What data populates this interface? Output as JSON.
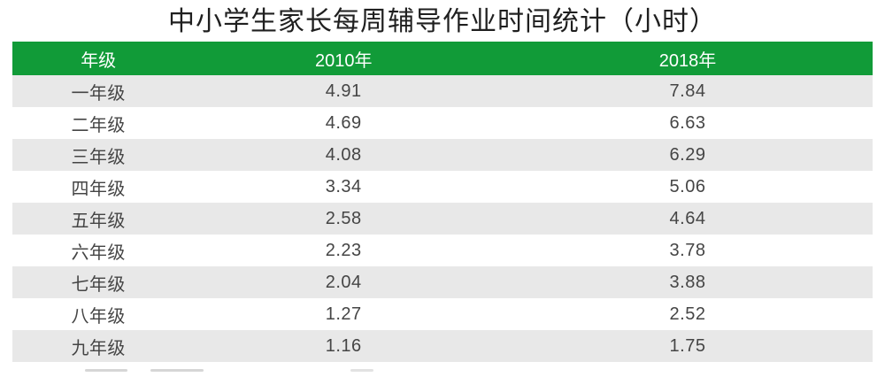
{
  "title": "中小学生家长每周辅导作业时间统计（小时）",
  "colors": {
    "header_bg": "#119b38",
    "header_text": "#ffffff",
    "row_alt_bg": "#e8e8e8",
    "body_text": "#454545",
    "title_text": "#1f1f1f"
  },
  "table": {
    "columns": [
      "年级",
      "2010年",
      "2018年"
    ],
    "rows": [
      {
        "grade": "一年级",
        "y2010": "4.91",
        "y2018": "7.84"
      },
      {
        "grade": "二年级",
        "y2010": "4.69",
        "y2018": "6.63"
      },
      {
        "grade": "三年级",
        "y2010": "4.08",
        "y2018": "6.29"
      },
      {
        "grade": "四年级",
        "y2010": "3.34",
        "y2018": "5.06"
      },
      {
        "grade": "五年级",
        "y2010": "2.58",
        "y2018": "4.64"
      },
      {
        "grade": "六年级",
        "y2010": "2.23",
        "y2018": "3.78"
      },
      {
        "grade": "七年级",
        "y2010": "2.04",
        "y2018": "3.88"
      },
      {
        "grade": "八年级",
        "y2010": "1.27",
        "y2018": "2.52"
      },
      {
        "grade": "九年级",
        "y2010": "1.16",
        "y2018": "1.75"
      }
    ]
  },
  "chart_data": {
    "type": "table",
    "title": "中小学生家长每周辅导作业时间统计（小时）",
    "columns": [
      "年级",
      "2010年",
      "2018年"
    ],
    "categories": [
      "一年级",
      "二年级",
      "三年级",
      "四年级",
      "五年级",
      "六年级",
      "七年级",
      "八年级",
      "九年级"
    ],
    "series": [
      {
        "name": "2010年",
        "values": [
          4.91,
          4.69,
          4.08,
          3.34,
          2.58,
          2.23,
          2.04,
          1.27,
          1.16
        ]
      },
      {
        "name": "2018年",
        "values": [
          7.84,
          6.63,
          6.29,
          5.06,
          4.64,
          3.78,
          3.88,
          2.52,
          1.75
        ]
      }
    ],
    "unit": "小时",
    "layout": {
      "zebra_striping": true,
      "header_style": "green-bar",
      "clipped_bottom_row": true
    }
  }
}
